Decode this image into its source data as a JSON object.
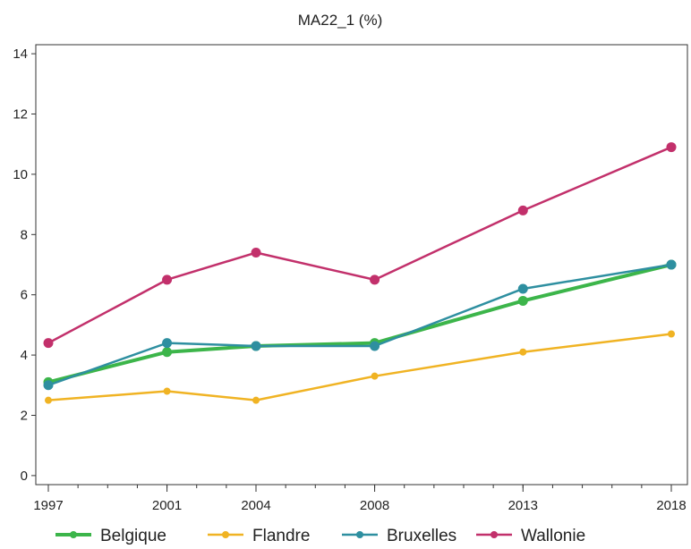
{
  "chart_data": {
    "type": "line",
    "title": "MA22_1 (%)",
    "xlabel": "",
    "ylabel": "",
    "x": [
      1997,
      2001,
      2004,
      2008,
      2013,
      2018
    ],
    "xticks": [
      "1997",
      "2001",
      "2004",
      "2008",
      "2013",
      "2018"
    ],
    "xlim": [
      1997,
      2018
    ],
    "ylim": [
      -0.3,
      14.3
    ],
    "yticks": [
      "0",
      "2",
      "4",
      "6",
      "8",
      "10",
      "12",
      "14"
    ],
    "grid": false,
    "legend_position": "bottom",
    "series": [
      {
        "name": "Belgique",
        "color": "#3cb54a",
        "values": [
          3.1,
          4.1,
          4.3,
          4.4,
          5.8,
          7.0
        ]
      },
      {
        "name": "Flandre",
        "color": "#f0b323",
        "values": [
          2.5,
          2.8,
          2.5,
          3.3,
          4.1,
          4.7
        ]
      },
      {
        "name": "Bruxelles",
        "color": "#2e8fa0",
        "values": [
          3.0,
          4.4,
          4.3,
          4.3,
          6.2,
          7.0
        ]
      },
      {
        "name": "Wallonie",
        "color": "#c2306b",
        "values": [
          4.4,
          6.5,
          7.4,
          6.5,
          8.8,
          10.9
        ]
      }
    ]
  }
}
